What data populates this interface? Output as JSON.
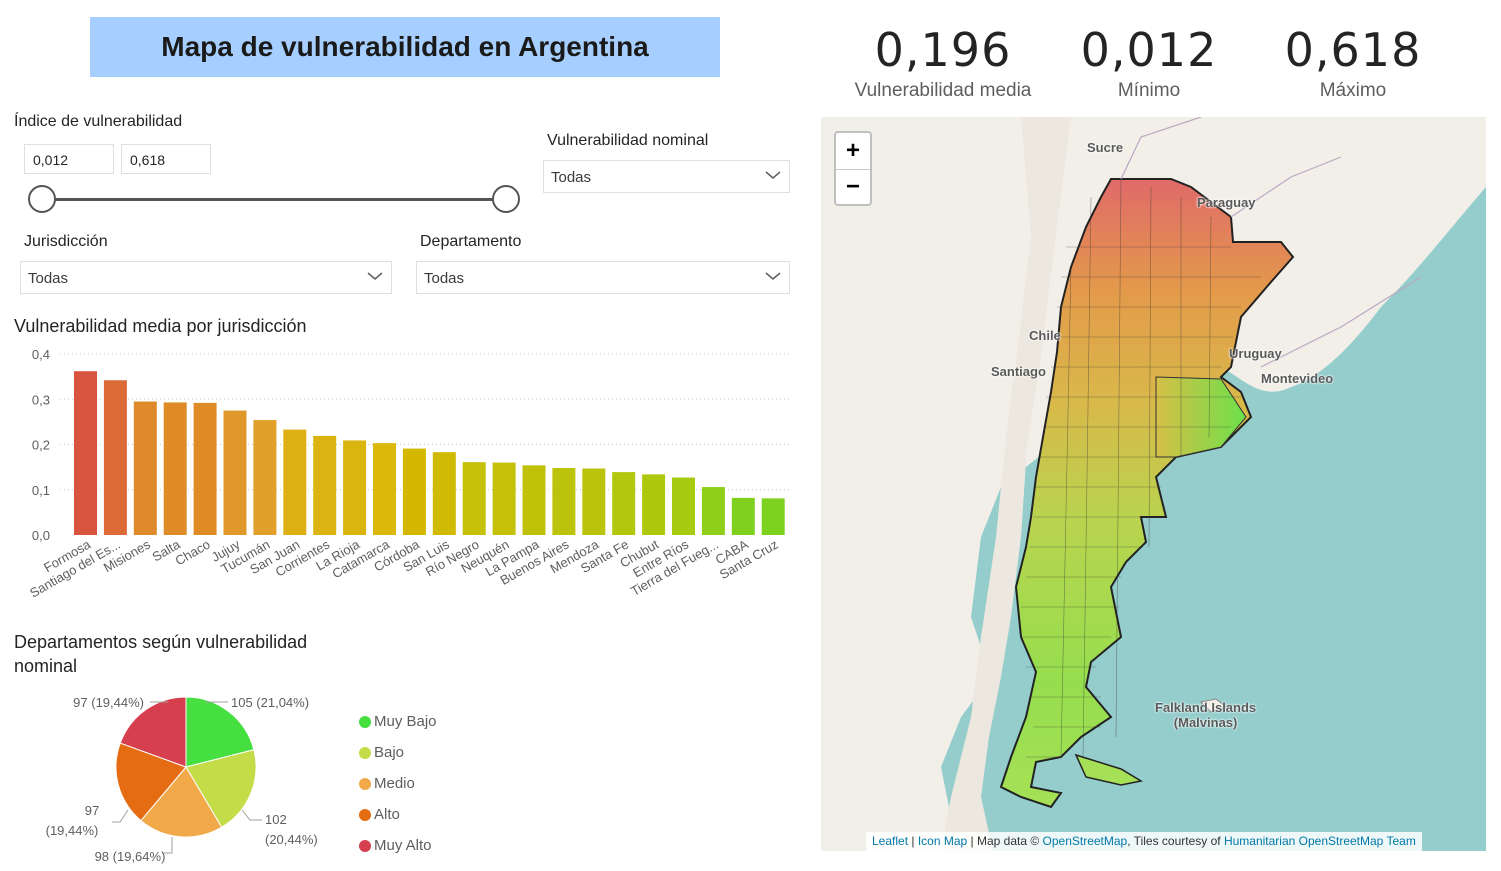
{
  "title": "Mapa de vulnerabilidad en Argentina",
  "kpis": [
    {
      "value": "0,196",
      "label": "Vulnerabilidad media"
    },
    {
      "value": "0,012",
      "label": "Mínimo"
    },
    {
      "value": "0,618",
      "label": "Máximo"
    }
  ],
  "slicers": {
    "indice": {
      "label": "Índice de vulnerabilidad",
      "min": "0,012",
      "max": "0,618"
    },
    "nominal": {
      "label": "Vulnerabilidad nominal",
      "value": "Todas"
    },
    "jurisdiccion": {
      "label": "Jurisdicción",
      "value": "Todas"
    },
    "departamento": {
      "label": "Departamento",
      "value": "Todas"
    }
  },
  "bar_chart": {
    "title": "Vulnerabilidad media por jurisdicción"
  },
  "pie_chart": {
    "title_line1": "Departamentos según vulnerabilidad",
    "title_line2": "nominal"
  },
  "chart_data": [
    {
      "type": "bar",
      "title": "Vulnerabilidad media por jurisdicción",
      "ylim": [
        0,
        0.4
      ],
      "yticks": [
        "0,0",
        "0,1",
        "0,2",
        "0,3",
        "0,4"
      ],
      "grid": true,
      "categories": [
        "Formosa",
        "Santiago del Es...",
        "Misiones",
        "Salta",
        "Chaco",
        "Jujuy",
        "Tucumán",
        "San Juan",
        "Corrientes",
        "La Rioja",
        "Catamarca",
        "Córdoba",
        "San Luis",
        "Río Negro",
        "Neuquén",
        "La Pampa",
        "Buenos Aires",
        "Mendoza",
        "Santa Fe",
        "Chubut",
        "Entre Ríos",
        "Tierra del Fueg...",
        "CABA",
        "Santa Cruz"
      ],
      "values": [
        0.362,
        0.342,
        0.295,
        0.293,
        0.292,
        0.275,
        0.254,
        0.233,
        0.219,
        0.209,
        0.203,
        0.191,
        0.183,
        0.161,
        0.16,
        0.154,
        0.148,
        0.147,
        0.139,
        0.134,
        0.127,
        0.106,
        0.082,
        0.081
      ],
      "colors": [
        "#d9543f",
        "#dc6b38",
        "#de8a2a",
        "#df8b28",
        "#df8c27",
        "#e0982a",
        "#e0a02a",
        "#ddb116",
        "#dcb412",
        "#dbb50f",
        "#dab80c",
        "#d4b800",
        "#d0ba04",
        "#c5c008",
        "#c5c108",
        "#c0c20a",
        "#bcc30c",
        "#bbc40c",
        "#b2c70e",
        "#aec80e",
        "#a6cb10",
        "#8fcf1a",
        "#80d11e",
        "#7dd21f"
      ]
    },
    {
      "type": "pie",
      "title": "Departamentos según vulnerabilidad nominal",
      "slices": [
        {
          "name": "Muy Bajo",
          "value": 105,
          "label": "105 (21,04%)",
          "color": "#45df40"
        },
        {
          "name": "Bajo",
          "value": 102,
          "label": "102 (20,44%)",
          "color": "#c5dc49"
        },
        {
          "name": "Medio",
          "value": 98,
          "label": "98 (19,64%)",
          "color": "#f1a94a"
        },
        {
          "name": "Alto",
          "value": 97,
          "label": "97 (19,44%)",
          "color": "#e56c12"
        },
        {
          "name": "Muy Alto",
          "value": 97,
          "label": "97 (19,44%)",
          "color": "#d63f4e"
        }
      ],
      "label_split": {
        "bajo_line1": "102",
        "bajo_line2": "(20,44%)",
        "alto_line1": "97",
        "alto_line2": "(19,44%)"
      },
      "legend_position": "right"
    }
  ],
  "map": {
    "labels": {
      "sucre": "Sucre",
      "paraguay": "Paraguay",
      "chile": "Chile",
      "santiago": "Santiago",
      "uruguay": "Uruguay",
      "montevideo": "Montevideo",
      "falkland1": "Falkland Islands",
      "falkland2": "(Malvinas)"
    },
    "zoom_in": "+",
    "zoom_out": "−",
    "attribution": {
      "leaflet": "Leaflet",
      "sep1": " | ",
      "iconmap": "Icon Map",
      "mid": " | Map data © ",
      "osm": "OpenStreetMap",
      "tiles": ", Tiles courtesy of ",
      "hot": "Humanitarian OpenStreetMap Team"
    }
  }
}
